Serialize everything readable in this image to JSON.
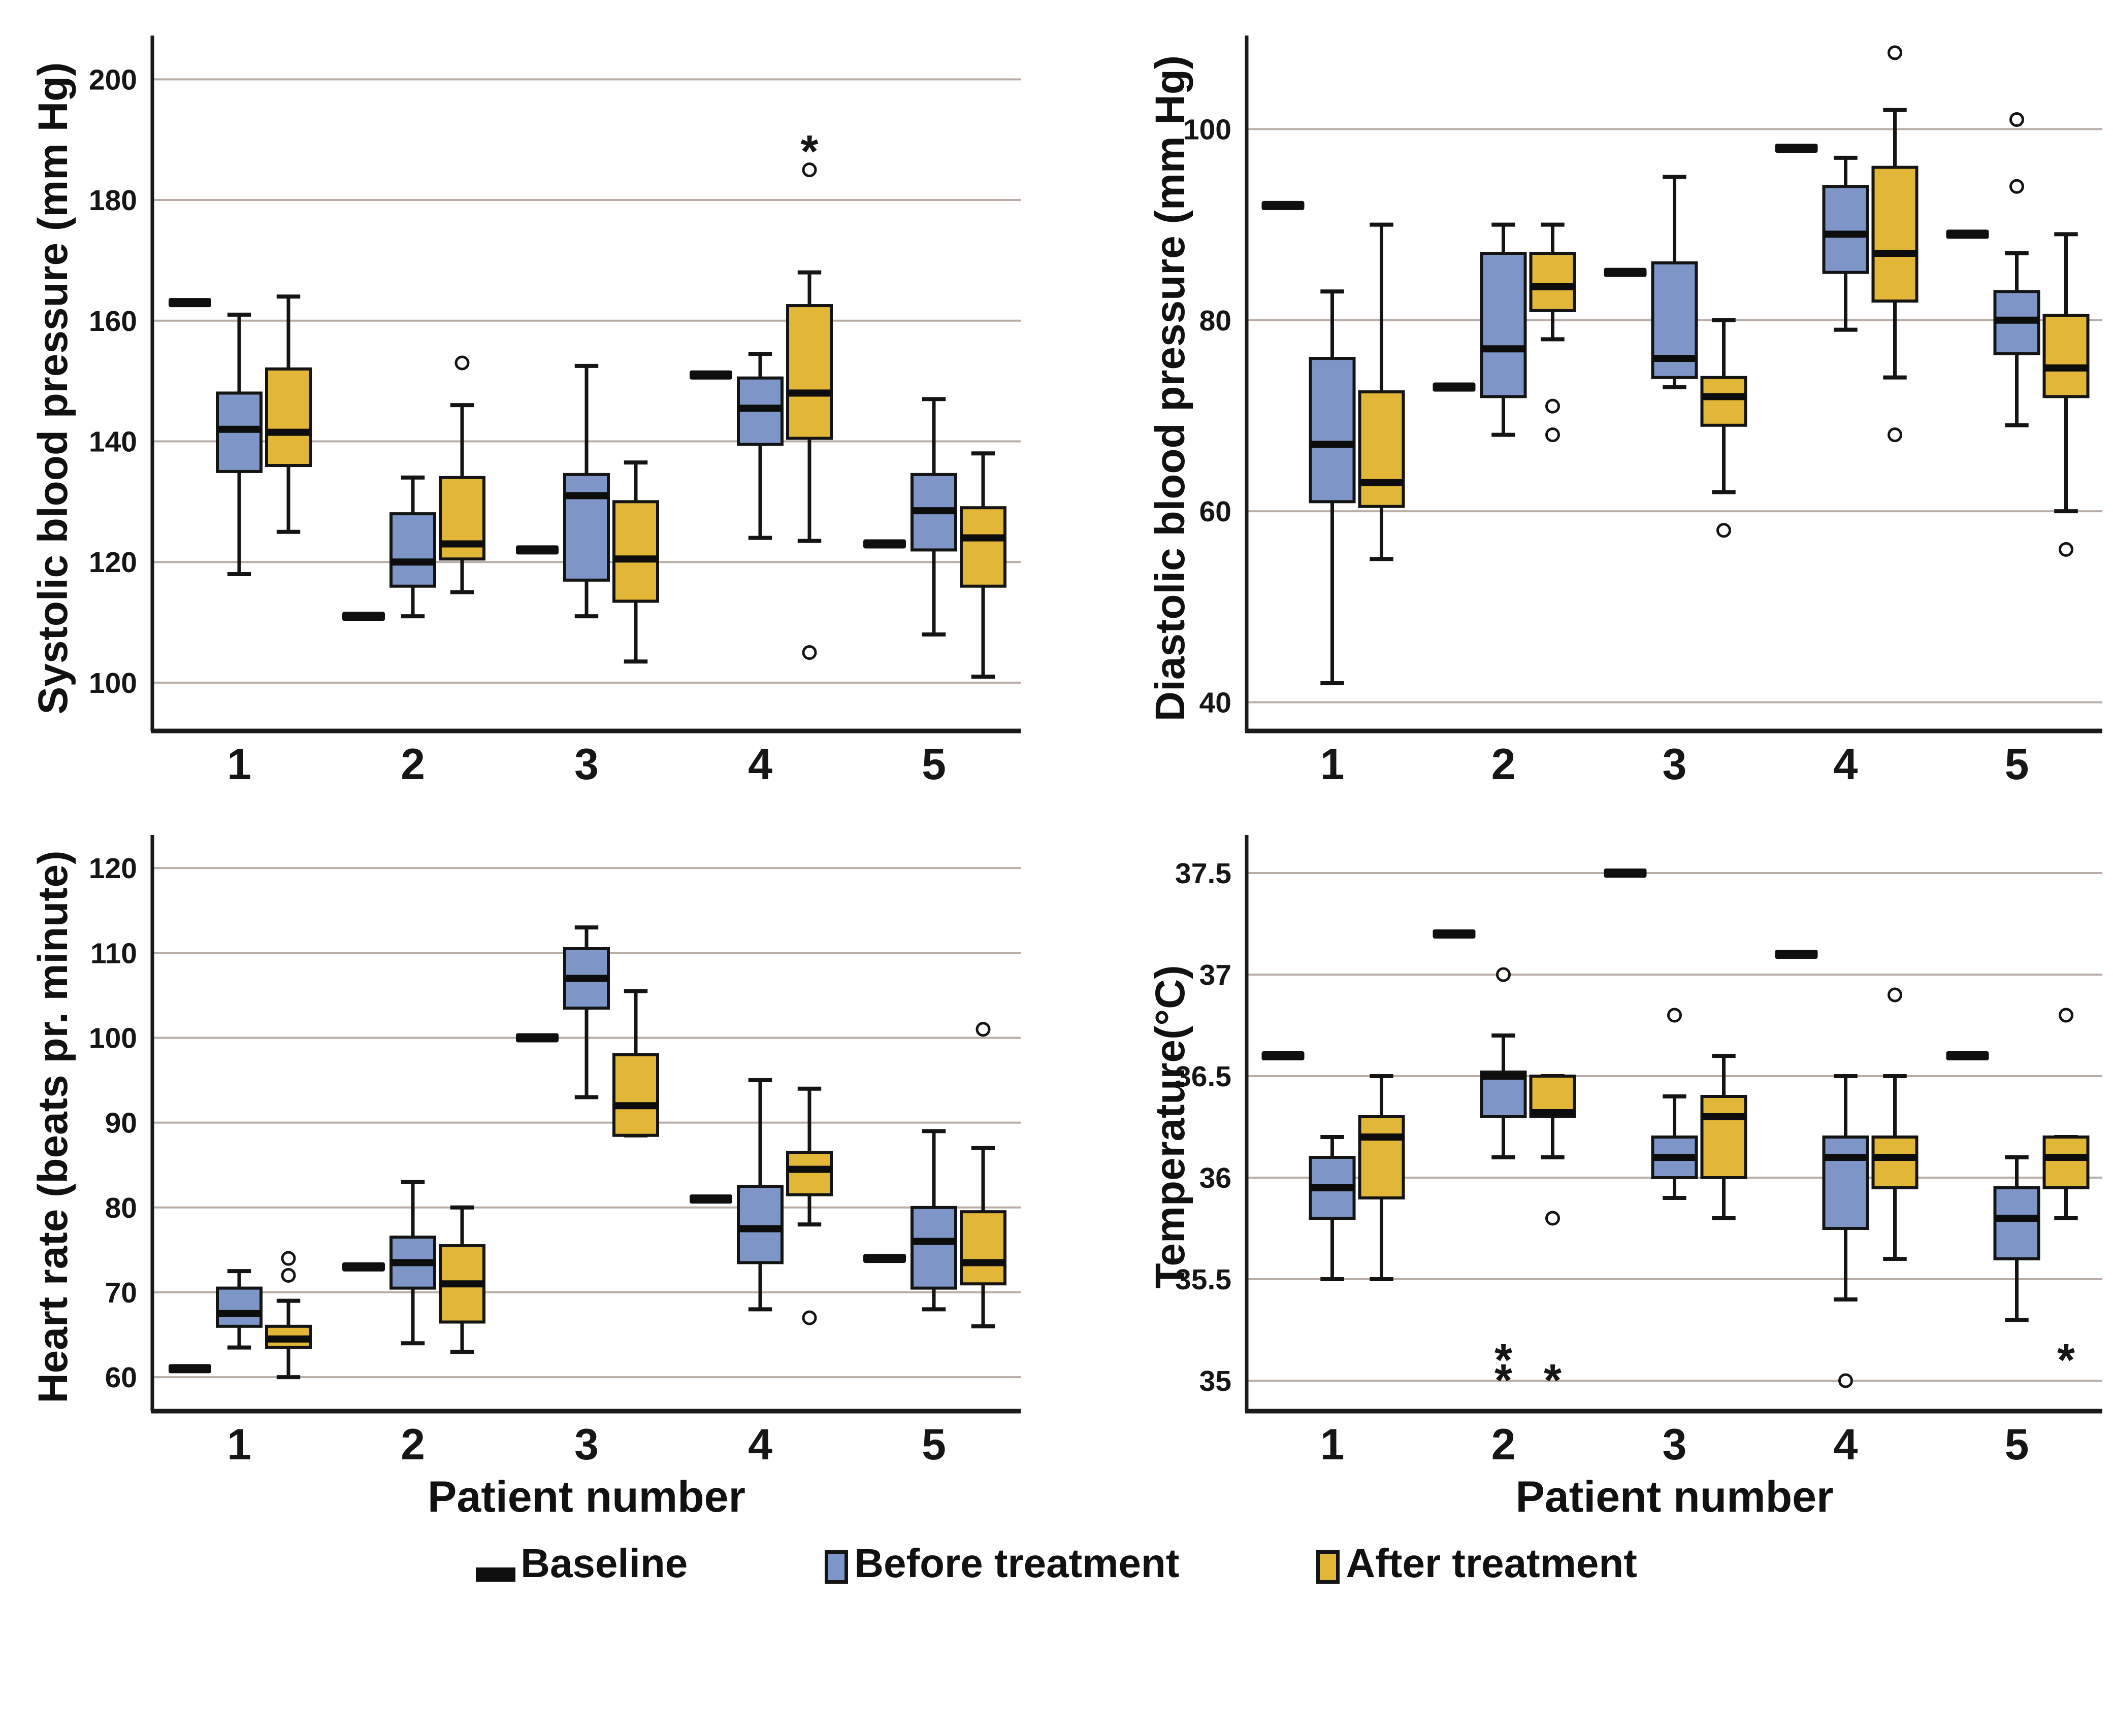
{
  "xlabel": "Patient number",
  "legend": {
    "items": [
      {
        "label": "Baseline",
        "type": "dash",
        "color": "#0f0f0f"
      },
      {
        "label": "Before treatment",
        "type": "box",
        "color": "#7d96c7"
      },
      {
        "label": "After treatment",
        "type": "box",
        "color": "#e2b637"
      }
    ]
  },
  "colors": {
    "before": "#7d96c7",
    "after": "#e2b637",
    "baseline": "#0f0f0f",
    "gridline": "#b9ada6",
    "axis": "#1a1a1a",
    "box_stroke": "#141414"
  },
  "chart_data": [
    {
      "type": "boxplot-grouped",
      "id": "systolic",
      "ylabel": "Systolic blood pressure (mm Hg)",
      "ylim": [
        92,
        206
      ],
      "yticks": [
        100,
        120,
        140,
        160,
        180,
        200
      ],
      "categories": [
        "1",
        "2",
        "3",
        "4",
        "5"
      ],
      "patients": [
        {
          "label": "1",
          "baseline": 163,
          "before": {
            "min": 118,
            "q1": 135,
            "med": 142,
            "q3": 148,
            "max": 161,
            "circles": [],
            "stars": []
          },
          "after": {
            "min": 125,
            "q1": 136,
            "med": 141.5,
            "q3": 152,
            "max": 164,
            "circles": [],
            "stars": []
          }
        },
        {
          "label": "2",
          "baseline": 111,
          "before": {
            "min": 111,
            "q1": 116,
            "med": 120,
            "q3": 128,
            "max": 134,
            "circles": [],
            "stars": []
          },
          "after": {
            "min": 115,
            "q1": 120.5,
            "med": 123,
            "q3": 134,
            "max": 146,
            "circles": [
              153
            ],
            "stars": []
          }
        },
        {
          "label": "3",
          "baseline": 122,
          "before": {
            "min": 111,
            "q1": 117,
            "med": 131,
            "q3": 134.5,
            "max": 152.5,
            "circles": [],
            "stars": []
          },
          "after": {
            "min": 103.5,
            "q1": 113.5,
            "med": 120.5,
            "q3": 130,
            "max": 136.5,
            "circles": [],
            "stars": []
          }
        },
        {
          "label": "4",
          "baseline": 151,
          "before": {
            "min": 124,
            "q1": 139.5,
            "med": 145.5,
            "q3": 150.5,
            "max": 154.5,
            "circles": [],
            "stars": []
          },
          "after": {
            "min": 123.5,
            "q1": 140.5,
            "med": 148,
            "q3": 162.5,
            "max": 168,
            "circles": [
              185,
              105
            ],
            "stars": [
              188
            ]
          }
        },
        {
          "label": "5",
          "baseline": 123,
          "before": {
            "min": 108,
            "q1": 122,
            "med": 128.5,
            "q3": 134.5,
            "max": 147,
            "circles": [],
            "stars": []
          },
          "after": {
            "min": 101,
            "q1": 116,
            "med": 124,
            "q3": 129,
            "max": 138,
            "circles": [],
            "stars": []
          }
        }
      ]
    },
    {
      "type": "boxplot-grouped",
      "id": "diastolic",
      "ylabel": "Diastolic blood pressure (mm Hg)",
      "ylim": [
        37,
        109
      ],
      "yticks": [
        40,
        60,
        80,
        100
      ],
      "categories": [
        "1",
        "2",
        "3",
        "4",
        "5"
      ],
      "patients": [
        {
          "label": "1",
          "baseline": 92,
          "before": {
            "min": 42,
            "q1": 61,
            "med": 67,
            "q3": 76,
            "max": 83,
            "circles": [],
            "stars": []
          },
          "after": {
            "min": 55,
            "q1": 60.5,
            "med": 63,
            "q3": 72.5,
            "max": 90,
            "circles": [],
            "stars": []
          }
        },
        {
          "label": "2",
          "baseline": 73,
          "before": {
            "min": 68,
            "q1": 72,
            "med": 77,
            "q3": 87,
            "max": 90,
            "circles": [],
            "stars": []
          },
          "after": {
            "min": 78,
            "q1": 81,
            "med": 83.5,
            "q3": 87,
            "max": 90,
            "circles": [
              71,
              68
            ],
            "stars": []
          }
        },
        {
          "label": "3",
          "baseline": 85,
          "before": {
            "min": 73,
            "q1": 74,
            "med": 76,
            "q3": 86,
            "max": 95,
            "circles": [],
            "stars": []
          },
          "after": {
            "min": 62,
            "q1": 69,
            "med": 72,
            "q3": 74,
            "max": 80,
            "circles": [
              58
            ],
            "stars": []
          }
        },
        {
          "label": "4",
          "baseline": 98,
          "before": {
            "min": 79,
            "q1": 85,
            "med": 89,
            "q3": 94,
            "max": 97,
            "circles": [],
            "stars": []
          },
          "after": {
            "min": 74,
            "q1": 82,
            "med": 87,
            "q3": 96,
            "max": 102,
            "circles": [
              108,
              68
            ],
            "stars": []
          }
        },
        {
          "label": "5",
          "baseline": 89,
          "before": {
            "min": 69,
            "q1": 76.5,
            "med": 80,
            "q3": 83,
            "max": 87,
            "circles": [
              101,
              94
            ],
            "stars": []
          },
          "after": {
            "min": 60,
            "q1": 72,
            "med": 75,
            "q3": 80.5,
            "max": 89,
            "circles": [
              56
            ],
            "stars": []
          }
        }
      ]
    },
    {
      "type": "boxplot-grouped",
      "id": "heart-rate",
      "ylabel": "Heart rate (beats pr. minute)",
      "ylim": [
        56,
        123
      ],
      "yticks": [
        60,
        70,
        80,
        90,
        100,
        110,
        120
      ],
      "categories": [
        "1",
        "2",
        "3",
        "4",
        "5"
      ],
      "patients": [
        {
          "label": "1",
          "baseline": 61,
          "before": {
            "min": 63.5,
            "q1": 66,
            "med": 67.5,
            "q3": 70.5,
            "max": 72.5,
            "circles": [],
            "stars": []
          },
          "after": {
            "min": 60,
            "q1": 63.5,
            "med": 64.5,
            "q3": 66,
            "max": 69,
            "circles": [
              74,
              72
            ],
            "stars": []
          }
        },
        {
          "label": "2",
          "baseline": 73,
          "before": {
            "min": 64,
            "q1": 70.5,
            "med": 73.5,
            "q3": 76.5,
            "max": 83,
            "circles": [],
            "stars": []
          },
          "after": {
            "min": 63,
            "q1": 66.5,
            "med": 71,
            "q3": 75.5,
            "max": 80,
            "circles": [],
            "stars": []
          }
        },
        {
          "label": "3",
          "baseline": 100,
          "before": {
            "min": 93,
            "q1": 103.5,
            "med": 107,
            "q3": 110.5,
            "max": 113,
            "circles": [],
            "stars": []
          },
          "after": {
            "min": 88.5,
            "q1": 88.5,
            "med": 92,
            "q3": 98,
            "max": 105.5,
            "circles": [],
            "stars": []
          }
        },
        {
          "label": "4",
          "baseline": 81,
          "before": {
            "min": 68,
            "q1": 73.5,
            "med": 77.5,
            "q3": 82.5,
            "max": 95,
            "circles": [],
            "stars": []
          },
          "after": {
            "min": 78,
            "q1": 81.5,
            "med": 84.5,
            "q3": 86.5,
            "max": 94,
            "circles": [
              67
            ],
            "stars": []
          }
        },
        {
          "label": "5",
          "baseline": 74,
          "before": {
            "min": 68,
            "q1": 70.5,
            "med": 76,
            "q3": 80,
            "max": 89,
            "circles": [],
            "stars": []
          },
          "after": {
            "min": 66,
            "q1": 71,
            "med": 73.5,
            "q3": 79.5,
            "max": 87,
            "circles": [
              101
            ],
            "stars": []
          }
        }
      ]
    },
    {
      "type": "boxplot-grouped",
      "id": "temperature",
      "ylabel": "Temperature(°C)",
      "ylim": [
        34.85,
        37.65
      ],
      "yticks": [
        35,
        35.5,
        36,
        36.5,
        37,
        37.5
      ],
      "categories": [
        "1",
        "2",
        "3",
        "4",
        "5"
      ],
      "patients": [
        {
          "label": "1",
          "baseline": 36.6,
          "before": {
            "min": 35.5,
            "q1": 35.8,
            "med": 35.95,
            "q3": 36.1,
            "max": 36.2,
            "circles": [],
            "stars": []
          },
          "after": {
            "min": 35.5,
            "q1": 35.9,
            "med": 36.2,
            "q3": 36.3,
            "max": 36.5,
            "circles": [],
            "stars": []
          }
        },
        {
          "label": "2",
          "baseline": 37.2,
          "before": {
            "min": 36.1,
            "q1": 36.3,
            "med": 36.5,
            "q3": 36.52,
            "max": 36.7,
            "circles": [
              37.0
            ],
            "stars": [
              35.1,
              35.0
            ]
          },
          "after": {
            "min": 36.1,
            "q1": 36.3,
            "med": 36.32,
            "q3": 36.5,
            "max": 36.5,
            "circles": [
              35.8
            ],
            "stars": [
              35.0
            ]
          }
        },
        {
          "label": "3",
          "baseline": 37.5,
          "before": {
            "min": 35.9,
            "q1": 36.0,
            "med": 36.1,
            "q3": 36.2,
            "max": 36.4,
            "circles": [
              36.8
            ],
            "stars": []
          },
          "after": {
            "min": 35.8,
            "q1": 36.0,
            "med": 36.3,
            "q3": 36.4,
            "max": 36.6,
            "circles": [],
            "stars": []
          }
        },
        {
          "label": "4",
          "baseline": 37.1,
          "before": {
            "min": 35.4,
            "q1": 35.75,
            "med": 36.1,
            "q3": 36.2,
            "max": 36.5,
            "circles": [
              35.0
            ],
            "stars": []
          },
          "after": {
            "min": 35.6,
            "q1": 35.95,
            "med": 36.1,
            "q3": 36.2,
            "max": 36.5,
            "circles": [
              36.9
            ],
            "stars": []
          }
        },
        {
          "label": "5",
          "baseline": 36.6,
          "before": {
            "min": 35.3,
            "q1": 35.6,
            "med": 35.8,
            "q3": 35.95,
            "max": 36.1,
            "circles": [],
            "stars": []
          },
          "after": {
            "min": 35.8,
            "q1": 35.95,
            "med": 36.1,
            "q3": 36.2,
            "max": 36.2,
            "circles": [
              36.8
            ],
            "stars": [
              35.1
            ]
          }
        }
      ]
    }
  ]
}
